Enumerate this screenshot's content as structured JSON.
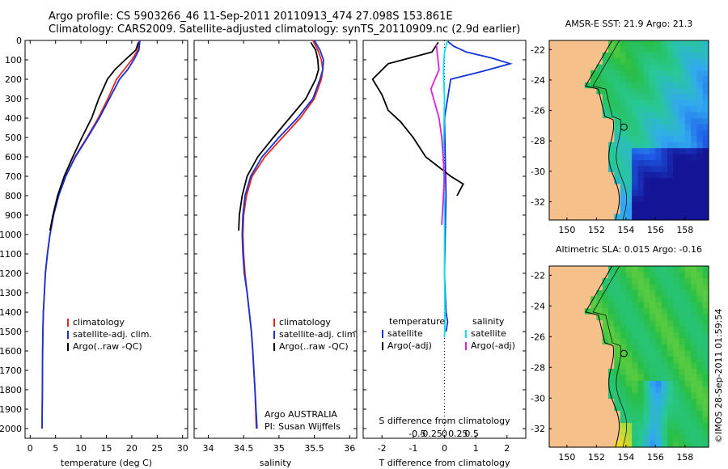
{
  "header": {
    "line1": "Argo profile: CS 5903266_46 11-Sep-2011 20110913_474 27.098S 153.861E",
    "line2": "Climatology: CARS2009. Satellite-adjusted climatology: synTS_20110909.nc (2.9d earlier)"
  },
  "timestamp": "©IMOS 28-Sep-2011 01:59:54",
  "colors": {
    "climatology": "#e8251c",
    "satellite": "#1432d9",
    "argo": "#000000",
    "satellite_salinity": "#00e5ee",
    "argo_salinity": "#e020d8",
    "land": "#f6c08a"
  },
  "chart_data": [
    {
      "id": "temperature",
      "type": "line",
      "xlabel": "temperature (deg C)",
      "ylabel": "",
      "xlim": [
        -1,
        31
      ],
      "ylim": [
        2050,
        0
      ],
      "xticks": [
        0,
        5,
        10,
        15,
        20,
        25,
        30
      ],
      "xtick_labels": [
        "0",
        "5",
        "10",
        "15",
        "20",
        "25",
        "30"
      ],
      "yticks": [
        0,
        100,
        200,
        300,
        400,
        500,
        600,
        700,
        800,
        900,
        1000,
        1100,
        1200,
        1300,
        1400,
        1500,
        1600,
        1700,
        1800,
        1900,
        2000
      ],
      "ytick_labels": [
        "0",
        "100",
        "200",
        "300",
        "400",
        "500",
        "600",
        "700",
        "800",
        "900",
        "1000",
        "1100",
        "1200",
        "1300",
        "1400",
        "1500",
        "1600",
        "1700",
        "1800",
        "1900",
        "2000"
      ],
      "legend": [
        "climatology",
        "satellite-adj. clim.",
        "Argo(..raw -QC)"
      ],
      "legend_colors": [
        "#e8251c",
        "#1432d9",
        "#000000"
      ],
      "series": [
        {
          "name": "climatology",
          "color": "#e8251c",
          "x": [
            21.5,
            21.2,
            20.0,
            18.5,
            17.0,
            15.3,
            13.4,
            11.2,
            8.8,
            7.0,
            5.6,
            4.6,
            3.9,
            3.4,
            3.0,
            2.8,
            2.6,
            2.5,
            2.45,
            2.4,
            2.35
          ],
          "y": [
            0,
            50,
            100,
            150,
            200,
            300,
            400,
            500,
            600,
            700,
            800,
            900,
            1000,
            1100,
            1200,
            1300,
            1400,
            1500,
            1600,
            1800,
            2000
          ]
        },
        {
          "name": "satellite-adj. clim.",
          "color": "#1432d9",
          "x": [
            21.6,
            21.4,
            20.4,
            19.2,
            17.6,
            15.6,
            13.6,
            11.3,
            8.9,
            7.0,
            5.6,
            4.6,
            3.9,
            3.4,
            3.0,
            2.8,
            2.6,
            2.5,
            2.45,
            2.4,
            2.35
          ],
          "y": [
            0,
            50,
            100,
            150,
            200,
            300,
            400,
            500,
            600,
            700,
            800,
            900,
            1000,
            1100,
            1200,
            1300,
            1400,
            1500,
            1600,
            1800,
            2000
          ]
        },
        {
          "name": "Argo(..raw -QC)",
          "color": "#000000",
          "x": [
            21.3,
            20.8,
            18.7,
            16.7,
            15.2,
            13.5,
            12.1,
            10.2,
            8.4,
            6.7,
            5.4,
            4.5,
            3.9
          ],
          "y": [
            10,
            50,
            100,
            150,
            200,
            300,
            400,
            500,
            600,
            700,
            800,
            900,
            980
          ]
        }
      ]
    },
    {
      "id": "salinity",
      "type": "line",
      "xlabel": "salinity",
      "ylabel": "",
      "xlim": [
        33.8,
        36.1
      ],
      "ylim": [
        2050,
        0
      ],
      "xticks": [
        34,
        34.5,
        35,
        35.5,
        36
      ],
      "xtick_labels": [
        "34",
        "34.5",
        "35",
        "35.5",
        "36"
      ],
      "legend": [
        "climatology",
        "satellite-adj. clim.",
        "Argo(..raw -QC)"
      ],
      "legend_colors": [
        "#e8251c",
        "#1432d9",
        "#000000"
      ],
      "annotation": [
        "Argo AUSTRALIA",
        "PI: Susan Wijffels"
      ],
      "series": [
        {
          "name": "climatology",
          "color": "#e8251c",
          "x": [
            35.48,
            35.55,
            35.6,
            35.62,
            35.6,
            35.5,
            35.3,
            35.05,
            34.8,
            34.62,
            34.54,
            34.5,
            34.49,
            34.5,
            34.52,
            34.55,
            34.58,
            34.61,
            34.63,
            34.66,
            34.68
          ],
          "y": [
            0,
            50,
            100,
            150,
            200,
            300,
            400,
            500,
            600,
            700,
            800,
            900,
            1000,
            1100,
            1200,
            1300,
            1400,
            1500,
            1600,
            1800,
            2000
          ]
        },
        {
          "name": "satellite-adj. clim.",
          "color": "#1432d9",
          "x": [
            35.5,
            35.58,
            35.63,
            35.62,
            35.58,
            35.48,
            35.26,
            35.0,
            34.76,
            34.6,
            34.52,
            34.49,
            34.48,
            34.49,
            34.51,
            34.55,
            34.58,
            34.61,
            34.63,
            34.66,
            34.69
          ],
          "y": [
            0,
            50,
            100,
            150,
            200,
            300,
            400,
            500,
            600,
            700,
            800,
            900,
            1000,
            1100,
            1200,
            1300,
            1400,
            1500,
            1600,
            1800,
            2000
          ]
        },
        {
          "name": "Argo(..raw -QC)",
          "color": "#000000",
          "x": [
            35.45,
            35.52,
            35.55,
            35.56,
            35.52,
            35.38,
            35.15,
            34.92,
            34.7,
            34.55,
            34.48,
            34.44,
            34.43
          ],
          "y": [
            10,
            50,
            100,
            150,
            200,
            300,
            400,
            500,
            600,
            700,
            800,
            900,
            980
          ]
        }
      ]
    },
    {
      "id": "differences",
      "type": "line",
      "xlabel": "T difference from climatology",
      "x2label": "S difference from climatology",
      "xlim": [
        -2.6,
        2.6
      ],
      "ylim": [
        2050,
        0
      ],
      "xticks": [
        -2,
        -1,
        0,
        1,
        2
      ],
      "xtick_labels": [
        "-2",
        "-1",
        "0",
        "1",
        "2"
      ],
      "x2ticks": [
        -0.5,
        -0.25,
        0,
        0.25,
        0.5
      ],
      "x2tick_labels": [
        "-0.5",
        "-0.25",
        "0",
        "0.25",
        "0.5"
      ],
      "legend_headers": [
        "temperature",
        "salinity"
      ],
      "legend": [
        "satellite",
        "Argo(-adj)",
        "satellite",
        "Argo(-adj)"
      ],
      "legend_colors": [
        "#1432d9",
        "#000000",
        "#00e5ee",
        "#e020d8"
      ],
      "series": [
        {
          "name": "satellite",
          "quantity": "temperature",
          "color": "#1432d9",
          "x": [
            0.1,
            0.3,
            0.7,
            1.5,
            2.1,
            1.2,
            0.2,
            0.0,
            0.05,
            0.0,
            0.05,
            0.1,
            0.05
          ],
          "y": [
            5,
            30,
            60,
            90,
            120,
            160,
            200,
            400,
            800,
            1200,
            1400,
            1450,
            1500
          ]
        },
        {
          "name": "Argo(-adj)",
          "quantity": "temperature",
          "color": "#000000",
          "x": [
            -0.2,
            -0.4,
            -1.8,
            -2.3,
            -2.0,
            -1.8,
            -1.4,
            -1.0,
            -0.6,
            0.2,
            0.6,
            0.4
          ],
          "y": [
            10,
            60,
            120,
            200,
            280,
            360,
            420,
            500,
            600,
            700,
            740,
            800
          ]
        },
        {
          "name": "satellite",
          "quantity": "salinity",
          "color": "#00e5ee",
          "x": [
            0.05,
            0.0,
            -0.02,
            0.0,
            -0.02,
            0.0,
            0.0,
            0.01,
            0.0
          ],
          "y": [
            5,
            60,
            150,
            300,
            600,
            900,
            1200,
            1400,
            1530
          ]
        },
        {
          "name": "Argo(-adj)",
          "quantity": "salinity",
          "color": "#e020d8",
          "x": [
            -0.15,
            -0.1,
            -0.25,
            -0.2,
            -0.1,
            -0.05,
            0.0,
            -0.05
          ],
          "y": [
            20,
            150,
            250,
            300,
            400,
            500,
            700,
            950
          ]
        }
      ]
    },
    {
      "id": "sst_map",
      "type": "heatmap",
      "title": "AMSR-E SST: 21.9 Argo: 21.3",
      "xlim": [
        148.8,
        159.6
      ],
      "ylim": [
        -33.2,
        -21.4
      ],
      "xticks": [
        150,
        152,
        154,
        156,
        158
      ],
      "xtick_labels": [
        "150",
        "152",
        "154",
        "156",
        "158"
      ],
      "yticks": [
        -22,
        -24,
        -26,
        -28,
        -30,
        -32
      ],
      "ytick_labels": [
        "-22",
        "-24",
        "-26",
        "-28",
        "-30",
        "-32"
      ],
      "float_position": {
        "lon": 153.861,
        "lat": -27.098
      }
    },
    {
      "id": "sla_map",
      "type": "heatmap",
      "title": "Altimetric SLA: 0.015 Argo: -0.16",
      "xlim": [
        148.8,
        159.6
      ],
      "ylim": [
        -33.2,
        -21.4
      ],
      "xticks": [
        150,
        152,
        154,
        156,
        158
      ],
      "xtick_labels": [
        "150",
        "152",
        "154",
        "156",
        "158"
      ],
      "yticks": [
        -22,
        -24,
        -26,
        -28,
        -30,
        -32
      ],
      "ytick_labels": [
        "-22",
        "-24",
        "-26",
        "-28",
        "-30",
        "-32"
      ],
      "float_position": {
        "lon": 153.861,
        "lat": -27.098
      }
    }
  ]
}
